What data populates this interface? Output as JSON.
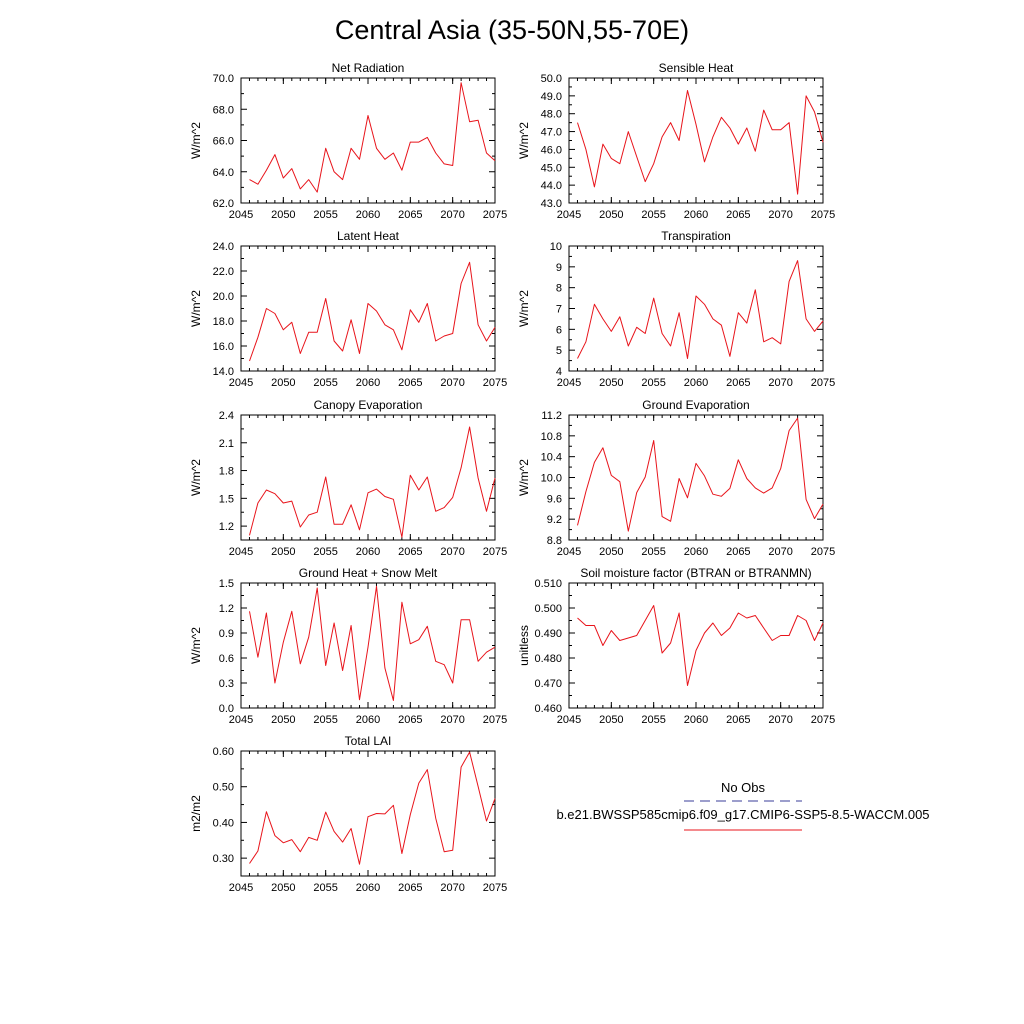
{
  "figure": {
    "title": "Central Asia (35-50N,55-70E)",
    "colors": {
      "model_line": "#e8141b",
      "obs_line": "#3a3d9a",
      "axes": "#000000"
    }
  },
  "chart_data": [
    {
      "type": "line",
      "title": "Net Radiation",
      "ylabel": "W/m^2",
      "xlim": [
        2045,
        2075
      ],
      "ylim": [
        62.0,
        70.0
      ],
      "xticks": [
        2045,
        2050,
        2055,
        2060,
        2065,
        2070,
        2075
      ],
      "xtick_labels": [
        "2045",
        "2050",
        "2055",
        "2060",
        "2065",
        "2070",
        "2075"
      ],
      "yticks": [
        62.0,
        64.0,
        66.0,
        68.0,
        70.0
      ],
      "ytick_labels": [
        "62.0",
        "64.0",
        "66.0",
        "68.0",
        "70.0"
      ],
      "series": [
        {
          "x_start": 2046,
          "values": [
            63.5,
            63.2,
            64.1,
            65.1,
            63.6,
            64.2,
            62.9,
            63.5,
            62.7,
            65.5,
            64.0,
            63.5,
            65.5,
            64.8,
            67.6,
            65.5,
            64.8,
            65.2,
            64.1,
            65.9,
            65.9,
            66.2,
            65.2,
            64.5,
            64.4,
            69.7,
            67.2,
            67.3,
            65.2,
            64.7
          ]
        }
      ]
    },
    {
      "type": "line",
      "title": "Sensible Heat",
      "ylabel": "W/m^2",
      "xlim": [
        2045,
        2075
      ],
      "ylim": [
        43.0,
        50.0
      ],
      "xticks": [
        2045,
        2050,
        2055,
        2060,
        2065,
        2070,
        2075
      ],
      "xtick_labels": [
        "2045",
        "2050",
        "2055",
        "2060",
        "2065",
        "2070",
        "2075"
      ],
      "yticks": [
        43.0,
        44.0,
        45.0,
        46.0,
        47.0,
        48.0,
        49.0,
        50.0
      ],
      "ytick_labels": [
        "43.0",
        "44.0",
        "45.0",
        "46.0",
        "47.0",
        "48.0",
        "49.0",
        "50.0"
      ],
      "series": [
        {
          "x_start": 2046,
          "values": [
            47.5,
            46.0,
            43.9,
            46.3,
            45.5,
            45.2,
            47.0,
            45.6,
            44.2,
            45.2,
            46.7,
            47.5,
            46.5,
            49.3,
            47.4,
            45.3,
            46.7,
            47.8,
            47.2,
            46.3,
            47.2,
            45.9,
            48.2,
            47.1,
            47.1,
            47.5,
            43.5,
            49.0,
            48.1,
            46.4
          ]
        }
      ]
    },
    {
      "type": "line",
      "title": "Latent Heat",
      "ylabel": "W/m^2",
      "xlim": [
        2045,
        2075
      ],
      "ylim": [
        14.0,
        24.0
      ],
      "xticks": [
        2045,
        2050,
        2055,
        2060,
        2065,
        2070,
        2075
      ],
      "xtick_labels": [
        "2045",
        "2050",
        "2055",
        "2060",
        "2065",
        "2070",
        "2075"
      ],
      "yticks": [
        14.0,
        16.0,
        18.0,
        20.0,
        22.0,
        24.0
      ],
      "ytick_labels": [
        "14.0",
        "16.0",
        "18.0",
        "20.0",
        "22.0",
        "24.0"
      ],
      "series": [
        {
          "x_start": 2046,
          "values": [
            14.8,
            16.7,
            19.0,
            18.6,
            17.3,
            17.9,
            15.4,
            17.1,
            17.1,
            19.8,
            16.4,
            15.6,
            18.1,
            15.4,
            19.4,
            18.8,
            17.7,
            17.3,
            15.7,
            18.9,
            17.9,
            19.4,
            16.4,
            16.8,
            17.0,
            21.0,
            22.7,
            17.7,
            16.4,
            17.5
          ]
        }
      ]
    },
    {
      "type": "line",
      "title": "Transpiration",
      "ylabel": "W/m^2",
      "xlim": [
        2045,
        2075
      ],
      "ylim": [
        4,
        10
      ],
      "xticks": [
        2045,
        2050,
        2055,
        2060,
        2065,
        2070,
        2075
      ],
      "xtick_labels": [
        "2045",
        "2050",
        "2055",
        "2060",
        "2065",
        "2070",
        "2075"
      ],
      "yticks": [
        4,
        5,
        6,
        7,
        8,
        9,
        10
      ],
      "ytick_labels": [
        "4",
        "5",
        "6",
        "7",
        "8",
        "9",
        "10"
      ],
      "series": [
        {
          "x_start": 2046,
          "values": [
            4.6,
            5.4,
            7.2,
            6.5,
            5.9,
            6.6,
            5.2,
            6.1,
            5.8,
            7.5,
            5.8,
            5.2,
            6.8,
            4.6,
            7.6,
            7.2,
            6.5,
            6.2,
            4.7,
            6.8,
            6.3,
            7.9,
            5.4,
            5.6,
            5.3,
            8.3,
            9.3,
            6.5,
            5.9,
            6.4
          ]
        }
      ]
    },
    {
      "type": "line",
      "title": "Canopy Evaporation",
      "ylabel": "W/m^2",
      "xlim": [
        2045,
        2075
      ],
      "ylim": [
        1.05,
        2.4
      ],
      "xticks": [
        2045,
        2050,
        2055,
        2060,
        2065,
        2070,
        2075
      ],
      "xtick_labels": [
        "2045",
        "2050",
        "2055",
        "2060",
        "2065",
        "2070",
        "2075"
      ],
      "yticks": [
        1.2,
        1.5,
        1.8,
        2.1,
        2.4
      ],
      "ytick_labels": [
        "1.2",
        "1.5",
        "1.8",
        "2.1",
        "2.4"
      ],
      "series": [
        {
          "x_start": 2046,
          "values": [
            1.1,
            1.45,
            1.59,
            1.55,
            1.45,
            1.47,
            1.19,
            1.32,
            1.35,
            1.73,
            1.22,
            1.22,
            1.43,
            1.16,
            1.56,
            1.6,
            1.52,
            1.49,
            1.08,
            1.75,
            1.59,
            1.73,
            1.36,
            1.4,
            1.51,
            1.83,
            2.27,
            1.72,
            1.36,
            1.72
          ]
        }
      ]
    },
    {
      "type": "line",
      "title": "Ground Evaporation",
      "ylabel": "W/m^2",
      "xlim": [
        2045,
        2075
      ],
      "ylim": [
        8.8,
        11.2
      ],
      "xticks": [
        2045,
        2050,
        2055,
        2060,
        2065,
        2070,
        2075
      ],
      "xtick_labels": [
        "2045",
        "2050",
        "2055",
        "2060",
        "2065",
        "2070",
        "2075"
      ],
      "yticks": [
        8.8,
        9.2,
        9.6,
        10.0,
        10.4,
        10.8,
        11.2
      ],
      "ytick_labels": [
        "8.8",
        "9.2",
        "9.6",
        "10.0",
        "10.4",
        "10.8",
        "11.2"
      ],
      "series": [
        {
          "x_start": 2046,
          "values": [
            9.08,
            9.73,
            10.29,
            10.57,
            10.04,
            9.92,
            8.97,
            9.71,
            10.01,
            10.71,
            9.25,
            9.16,
            9.98,
            9.61,
            10.27,
            10.03,
            9.68,
            9.64,
            9.79,
            10.34,
            9.98,
            9.8,
            9.7,
            9.8,
            10.17,
            10.9,
            11.14,
            9.58,
            9.21,
            9.49
          ]
        }
      ]
    },
    {
      "type": "line",
      "title": "Ground Heat + Snow Melt",
      "ylabel": "W/m^2",
      "xlim": [
        2045,
        2075
      ],
      "ylim": [
        0.0,
        1.5
      ],
      "xticks": [
        2045,
        2050,
        2055,
        2060,
        2065,
        2070,
        2075
      ],
      "xtick_labels": [
        "2045",
        "2050",
        "2055",
        "2060",
        "2065",
        "2070",
        "2075"
      ],
      "yticks": [
        0.0,
        0.3,
        0.6,
        0.9,
        1.2,
        1.5
      ],
      "ytick_labels": [
        "0.0",
        "0.3",
        "0.6",
        "0.9",
        "1.2",
        "1.5"
      ],
      "series": [
        {
          "x_start": 2046,
          "values": [
            1.16,
            0.61,
            1.14,
            0.3,
            0.79,
            1.16,
            0.53,
            0.85,
            1.44,
            0.51,
            1.02,
            0.45,
            0.99,
            0.1,
            0.73,
            1.46,
            0.48,
            0.09,
            1.27,
            0.77,
            0.82,
            0.98,
            0.56,
            0.52,
            0.3,
            1.06,
            1.06,
            0.56,
            0.67,
            0.73
          ]
        }
      ]
    },
    {
      "type": "line",
      "title": "Soil moisture factor (BTRAN or BTRANMN)",
      "ylabel": "unitless",
      "xlim": [
        2045,
        2075
      ],
      "ylim": [
        0.46,
        0.51
      ],
      "xticks": [
        2045,
        2050,
        2055,
        2060,
        2065,
        2070,
        2075
      ],
      "xtick_labels": [
        "2045",
        "2050",
        "2055",
        "2060",
        "2065",
        "2070",
        "2075"
      ],
      "yticks": [
        0.46,
        0.47,
        0.48,
        0.49,
        0.5,
        0.51
      ],
      "ytick_labels": [
        "0.460",
        "0.470",
        "0.480",
        "0.490",
        "0.500",
        "0.510"
      ],
      "series": [
        {
          "x_start": 2046,
          "values": [
            0.496,
            0.493,
            0.493,
            0.485,
            0.491,
            0.487,
            0.488,
            0.489,
            0.495,
            0.501,
            0.482,
            0.486,
            0.498,
            0.469,
            0.483,
            0.49,
            0.494,
            0.489,
            0.492,
            0.498,
            0.496,
            0.497,
            0.492,
            0.487,
            0.489,
            0.489,
            0.497,
            0.495,
            0.487,
            0.494
          ]
        }
      ]
    },
    {
      "type": "line",
      "title": "Total LAI",
      "ylabel": "m2/m2",
      "xlim": [
        2045,
        2075
      ],
      "ylim": [
        0.25,
        0.6
      ],
      "xticks": [
        2045,
        2050,
        2055,
        2060,
        2065,
        2070,
        2075
      ],
      "xtick_labels": [
        "2045",
        "2050",
        "2055",
        "2060",
        "2065",
        "2070",
        "2075"
      ],
      "yticks": [
        0.3,
        0.4,
        0.5,
        0.6
      ],
      "ytick_labels": [
        "0.30",
        "0.40",
        "0.50",
        "0.60"
      ],
      "series": [
        {
          "x_start": 2046,
          "values": [
            0.285,
            0.32,
            0.43,
            0.363,
            0.343,
            0.352,
            0.318,
            0.358,
            0.35,
            0.429,
            0.375,
            0.345,
            0.383,
            0.283,
            0.416,
            0.425,
            0.424,
            0.448,
            0.313,
            0.422,
            0.51,
            0.548,
            0.412,
            0.318,
            0.322,
            0.555,
            0.597,
            0.501,
            0.404,
            0.467
          ]
        }
      ]
    }
  ],
  "legend": {
    "entries": [
      {
        "label": "No Obs",
        "style": "dashed",
        "color": "#3a3d9a"
      },
      {
        "label": "b.e21.BWSSP585cmip6.f09_g17.CMIP6-SSP5-8.5-WACCM.005",
        "style": "solid",
        "color": "#e8141b"
      }
    ]
  }
}
